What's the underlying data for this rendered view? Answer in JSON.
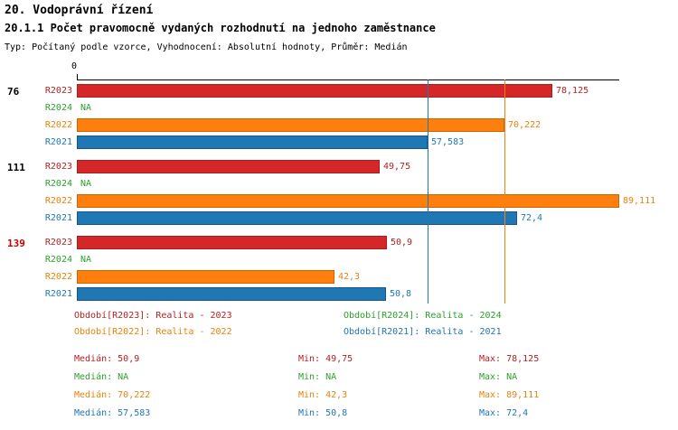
{
  "header": {
    "title": "20. Vodoprávní řízení",
    "subtitle": "20.1.1 Počet pravomocně vydaných rozhodnutí na jednoho zaměstnance",
    "meta": "Typ: Počítaný podle vzorce, Vyhodnocení: Absolutní hodnoty, Průměr: Medián"
  },
  "chart_data": {
    "type": "bar",
    "orientation": "horizontal",
    "x_axis": {
      "min": 0,
      "max": 89.111,
      "zero_label": "0"
    },
    "groups": [
      {
        "label": "76",
        "label_color": "#000000"
      },
      {
        "label": "111",
        "label_color": "#000000"
      },
      {
        "label": "139",
        "label_color": "#cc0000"
      }
    ],
    "series": [
      {
        "id": "R2023",
        "legend": "Období[R2023]: Realita - 2023",
        "color": "#d62728",
        "border": "#a81e1e",
        "text_color": "#b22222",
        "values": [
          78.125,
          49.75,
          50.9
        ],
        "labels": [
          "78,125",
          "49,75",
          "50,9"
        ]
      },
      {
        "id": "R2024",
        "legend": "Období[R2024]: Realita - 2024",
        "color": "#2ca02c",
        "border": "#1e7a1e",
        "text_color": "#2ca02c",
        "values": [
          null,
          null,
          null
        ],
        "labels": [
          "NA",
          "NA",
          "NA"
        ]
      },
      {
        "id": "R2022",
        "legend": "Období[R2022]: Realita - 2022",
        "color": "#ff7f0e",
        "border": "#cc6600",
        "text_color": "#e8820c",
        "values": [
          70.222,
          89.111,
          42.3
        ],
        "labels": [
          "70,222",
          "89,111",
          "42,3"
        ]
      },
      {
        "id": "R2021",
        "legend": "Období[R2021]: Realita - 2021",
        "color": "#1f77b4",
        "border": "#16568a",
        "text_color": "#1f77b4",
        "values": [
          57.583,
          72.4,
          50.8
        ],
        "labels": [
          "57,583",
          "72,4",
          "50,8"
        ]
      }
    ],
    "median_lines": [
      {
        "series": "R2022",
        "value": 70.222,
        "color": "#ff7f0e"
      },
      {
        "series": "R2021",
        "value": 57.583,
        "color": "#1f77b4"
      }
    ],
    "stats": [
      {
        "series": "R2023",
        "median": "Medián: 50,9",
        "min": "Min: 49,75",
        "max": "Max: 78,125",
        "color": "#b22222"
      },
      {
        "series": "R2024",
        "median": "Medián: NA",
        "min": "Min: NA",
        "max": "Max: NA",
        "color": "#2ca02c"
      },
      {
        "series": "R2022",
        "median": "Medián: 70,222",
        "min": "Min: 42,3",
        "max": "Max: 89,111",
        "color": "#e8820c"
      },
      {
        "series": "R2021",
        "median": "Medián: 57,583",
        "min": "Min: 50,8",
        "max": "Max: 72,4",
        "color": "#1f77b4"
      }
    ]
  }
}
